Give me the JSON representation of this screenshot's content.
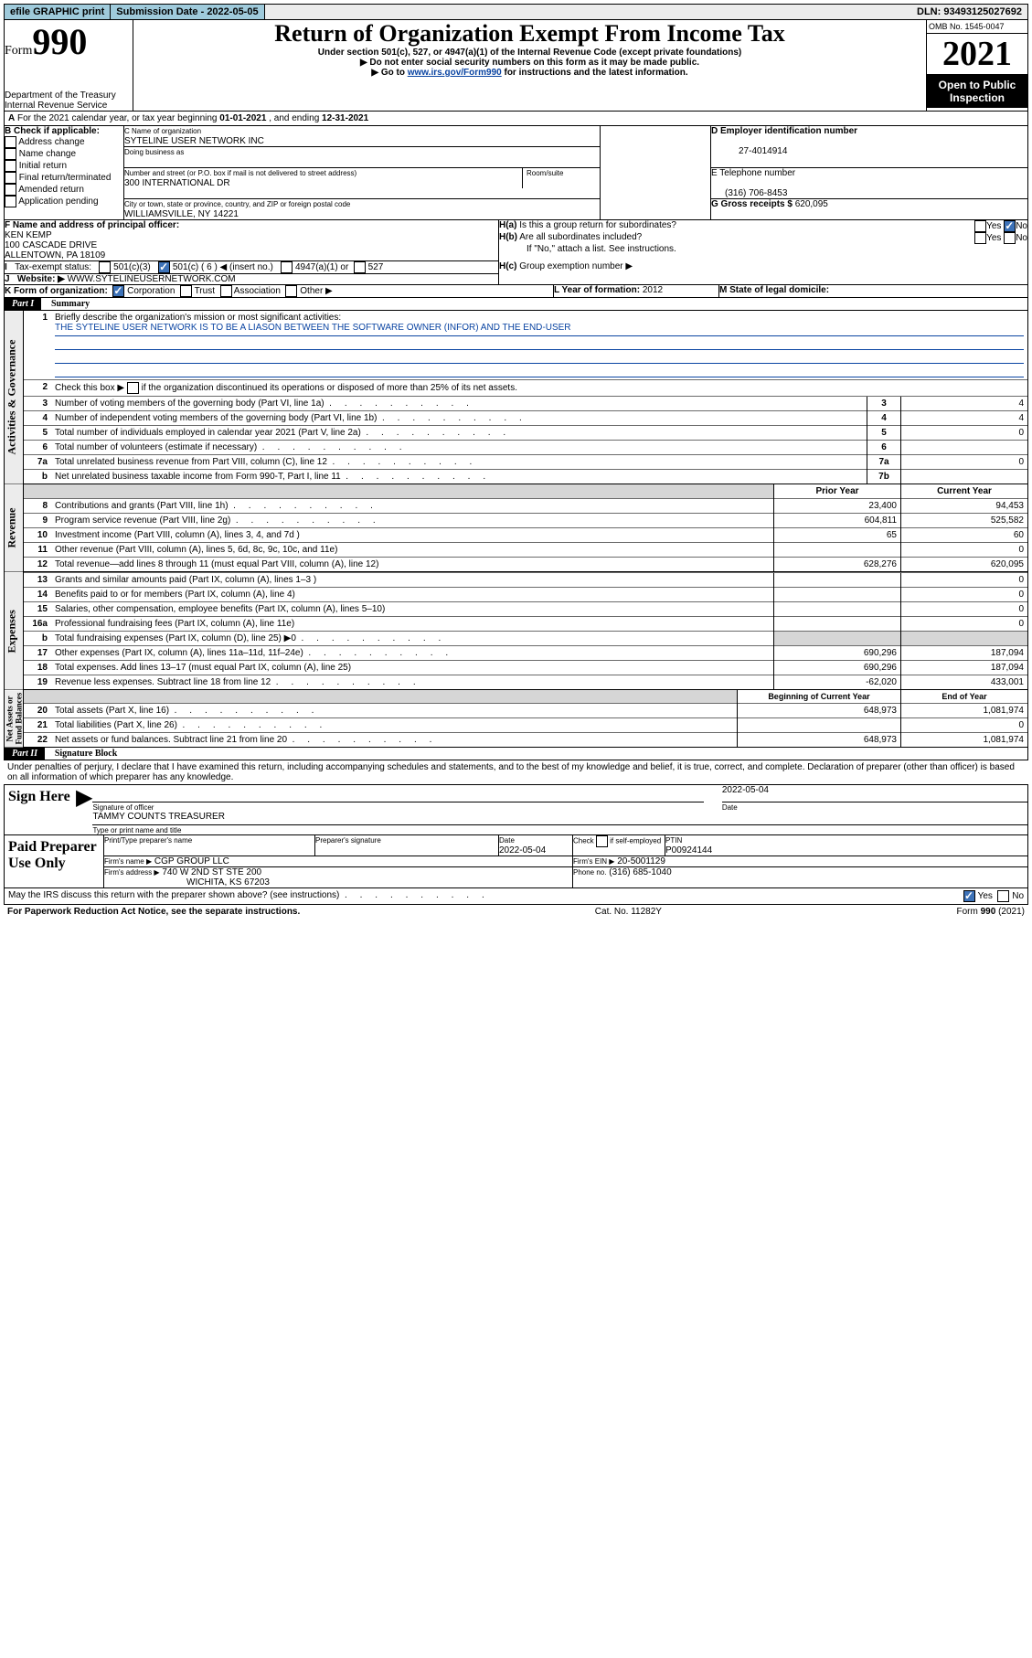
{
  "top": {
    "efile": "efile GRAPHIC print",
    "submission_label": "Submission Date - 2022-05-05",
    "dln_label": "DLN: 93493125027692"
  },
  "header": {
    "form_prefix": "Form",
    "form_num": "990",
    "title": "Return of Organization Exempt From Income Tax",
    "sub1": "Under section 501(c), 527, or 4947(a)(1) of the Internal Revenue Code (except private foundations)",
    "sub2": "▶ Do not enter social security numbers on this form as it may be made public.",
    "sub3_pre": "▶ Go to ",
    "sub3_link": "www.irs.gov/Form990",
    "sub3_post": " for instructions and the latest information.",
    "dept": "Department of the Treasury",
    "irs": "Internal Revenue Service",
    "omb": "OMB No. 1545-0047",
    "year": "2021",
    "open": "Open to Public Inspection"
  },
  "periodA": {
    "text_pre": "For the 2021 calendar year, or tax year beginning ",
    "begin": "01-01-2021",
    "mid": " , and ending ",
    "end": "12-31-2021"
  },
  "sectionB": {
    "label": "B Check if applicable:",
    "opts": [
      "Address change",
      "Name change",
      "Initial return",
      "Final return/terminated",
      "Amended return",
      "Application pending"
    ]
  },
  "sectionC": {
    "name_label": "C Name of organization",
    "name": "SYTELINE USER NETWORK INC",
    "dba_label": "Doing business as",
    "addr_label": "Number and street (or P.O. box if mail is not delivered to street address)",
    "room_label": "Room/suite",
    "addr": "300 INTERNATIONAL DR",
    "city_label": "City or town, state or province, country, and ZIP or foreign postal code",
    "city": "WILLIAMSVILLE, NY  14221"
  },
  "sectionD": {
    "label": "D Employer identification number",
    "val": "27-4014914"
  },
  "sectionE": {
    "label": "E Telephone number",
    "val": "(316) 706-8453"
  },
  "sectionG": {
    "label": "G Gross receipts $",
    "val": "620,095"
  },
  "sectionF": {
    "label": "F Name and address of principal officer:",
    "name": "KEN KEMP",
    "addr1": "100 CASCADE DRIVE",
    "addr2": "ALLENTOWN, PA  18109"
  },
  "sectionH": {
    "a": "Is this a group return for subordinates?",
    "b": "Are all subordinates included?",
    "b_note": "If \"No,\" attach a list. See instructions.",
    "c_label": "Group exemption number ▶"
  },
  "sectionI": {
    "label": "Tax-exempt status:",
    "opt1": "501(c)(3)",
    "opt2a": "501(c) ( 6 ) ◀ (insert no.)",
    "opt3": "4947(a)(1) or",
    "opt4": "527"
  },
  "sectionJ": {
    "label": "Website: ▶",
    "val": "WWW.SYTELINEUSERNETWORK.COM"
  },
  "sectionK": {
    "label": "K Form of organization:",
    "opts": [
      "Corporation",
      "Trust",
      "Association",
      "Other ▶"
    ]
  },
  "sectionL": {
    "label": "L Year of formation: ",
    "val": "2012"
  },
  "sectionM": {
    "label": "M State of legal domicile:"
  },
  "part1": {
    "header": "Part I",
    "title": "Summary",
    "line1_label": "Briefly describe the organization's mission or most significant activities:",
    "line1_val": "THE SYTELINE USER NETWORK IS TO BE A LIASON BETWEEN THE SOFTWARE OWNER (INFOR) AND THE END-USER",
    "line2": "Check this box ▶",
    "line2b": "if the organization discontinued its operations or disposed of more than 25% of its net assets.",
    "vert1": "Activities & Governance",
    "vert2": "Revenue",
    "vert3": "Expenses",
    "vert4": "Net Assets or\nFund Balances",
    "col_prior": "Prior Year",
    "col_curr": "Current Year",
    "col_begin": "Beginning of Current Year",
    "col_end": "End of Year",
    "gov_rows": [
      {
        "n": "3",
        "label": "Number of voting members of the governing body (Part VI, line 1a)",
        "box": "3",
        "val": "4"
      },
      {
        "n": "4",
        "label": "Number of independent voting members of the governing body (Part VI, line 1b)",
        "box": "4",
        "val": "4"
      },
      {
        "n": "5",
        "label": "Total number of individuals employed in calendar year 2021 (Part V, line 2a)",
        "box": "5",
        "val": "0"
      },
      {
        "n": "6",
        "label": "Total number of volunteers (estimate if necessary)",
        "box": "6",
        "val": ""
      },
      {
        "n": "7a",
        "label": "Total unrelated business revenue from Part VIII, column (C), line 12",
        "box": "7a",
        "val": "0"
      },
      {
        "n": "b",
        "label": "Net unrelated business taxable income from Form 990-T, Part I, line 11",
        "box": "7b",
        "val": ""
      }
    ],
    "rev_rows": [
      {
        "n": "8",
        "label": "Contributions and grants (Part VIII, line 1h)",
        "prior": "23,400",
        "curr": "94,453"
      },
      {
        "n": "9",
        "label": "Program service revenue (Part VIII, line 2g)",
        "prior": "604,811",
        "curr": "525,582"
      },
      {
        "n": "10",
        "label": "Investment income (Part VIII, column (A), lines 3, 4, and 7d )",
        "prior": "65",
        "curr": "60"
      },
      {
        "n": "11",
        "label": "Other revenue (Part VIII, column (A), lines 5, 6d, 8c, 9c, 10c, and 11e)",
        "prior": "",
        "curr": "0"
      },
      {
        "n": "12",
        "label": "Total revenue—add lines 8 through 11 (must equal Part VIII, column (A), line 12)",
        "prior": "628,276",
        "curr": "620,095"
      }
    ],
    "exp_rows": [
      {
        "n": "13",
        "label": "Grants and similar amounts paid (Part IX, column (A), lines 1–3 )",
        "prior": "",
        "curr": "0"
      },
      {
        "n": "14",
        "label": "Benefits paid to or for members (Part IX, column (A), line 4)",
        "prior": "",
        "curr": "0"
      },
      {
        "n": "15",
        "label": "Salaries, other compensation, employee benefits (Part IX, column (A), lines 5–10)",
        "prior": "",
        "curr": "0"
      },
      {
        "n": "16a",
        "label": "Professional fundraising fees (Part IX, column (A), line 11e)",
        "prior": "",
        "curr": "0"
      },
      {
        "n": "b",
        "label": "Total fundraising expenses (Part IX, column (D), line 25) ▶0",
        "prior": "shade",
        "curr": "shade"
      },
      {
        "n": "17",
        "label": "Other expenses (Part IX, column (A), lines 11a–11d, 11f–24e)",
        "prior": "690,296",
        "curr": "187,094"
      },
      {
        "n": "18",
        "label": "Total expenses. Add lines 13–17 (must equal Part IX, column (A), line 25)",
        "prior": "690,296",
        "curr": "187,094"
      },
      {
        "n": "19",
        "label": "Revenue less expenses. Subtract line 18 from line 12",
        "prior": "-62,020",
        "curr": "433,001"
      }
    ],
    "net_rows": [
      {
        "n": "20",
        "label": "Total assets (Part X, line 16)",
        "prior": "648,973",
        "curr": "1,081,974"
      },
      {
        "n": "21",
        "label": "Total liabilities (Part X, line 26)",
        "prior": "",
        "curr": "0"
      },
      {
        "n": "22",
        "label": "Net assets or fund balances. Subtract line 21 from line 20",
        "prior": "648,973",
        "curr": "1,081,974"
      }
    ]
  },
  "part2": {
    "header": "Part II",
    "title": "Signature Block",
    "decl": "Under penalties of perjury, I declare that I have examined this return, including accompanying schedules and statements, and to the best of my knowledge and belief, it is true, correct, and complete. Declaration of preparer (other than officer) is based on all information of which preparer has any knowledge.",
    "sign_here": "Sign Here",
    "sig_officer": "Signature of officer",
    "sig_date": "2022-05-04",
    "date_label": "Date",
    "officer_name": "TAMMY COUNTS TREASURER",
    "type_name": "Type or print name and title",
    "paid": "Paid Preparer Use Only",
    "prep_name_label": "Print/Type preparer's name",
    "prep_sig_label": "Preparer's signature",
    "prep_date_label": "Date",
    "prep_date": "2022-05-04",
    "check_if": "Check",
    "self_emp": "if self-employed",
    "ptin_label": "PTIN",
    "ptin": "P00924144",
    "firm_name_label": "Firm's name    ▶",
    "firm_name": "CGP GROUP LLC",
    "firm_ein_label": "Firm's EIN ▶",
    "firm_ein": "20-5001129",
    "firm_addr_label": "Firm's address ▶",
    "firm_addr1": "740 W 2ND ST STE 200",
    "firm_addr2": "WICHITA, KS  67203",
    "firm_phone_label": "Phone no.",
    "firm_phone": "(316) 685-1040",
    "may_irs": "May the IRS discuss this return with the preparer shown above? (see instructions)"
  },
  "footer": {
    "left": "For Paperwork Reduction Act Notice, see the separate instructions.",
    "mid": "Cat. No. 11282Y",
    "right": "Form 990 (2021)"
  }
}
